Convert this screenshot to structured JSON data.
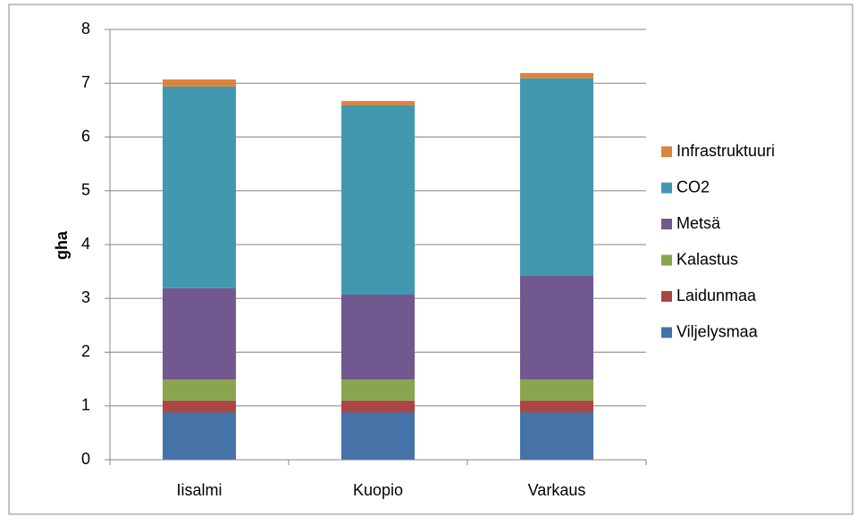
{
  "chart_data": {
    "type": "stacked_bar",
    "y_label": "gha",
    "categories": [
      "Iisalmi",
      "Kuopio",
      "Varkaus"
    ],
    "series": [
      {
        "name": "Viljelysmaa",
        "color": "#4572a7",
        "values": [
          0.88,
          0.88,
          0.88
        ]
      },
      {
        "name": "Laidunmaa",
        "color": "#aa4643",
        "values": [
          0.22,
          0.22,
          0.22
        ]
      },
      {
        "name": "Kalastus",
        "color": "#89a54e",
        "values": [
          0.39,
          0.39,
          0.39
        ]
      },
      {
        "name": "Metsä",
        "color": "#71588f",
        "values": [
          1.7,
          1.58,
          1.93
        ]
      },
      {
        "name": "CO2",
        "color": "#4198af",
        "values": [
          3.75,
          3.52,
          3.67
        ]
      },
      {
        "name": "Infrastruktuuri",
        "color": "#db843d",
        "values": [
          0.13,
          0.08,
          0.1
        ]
      }
    ],
    "ylim": [
      0,
      8
    ],
    "yticks": [
      0,
      1,
      2,
      3,
      4,
      5,
      6,
      7,
      8
    ],
    "grid": true,
    "legend": "right"
  }
}
